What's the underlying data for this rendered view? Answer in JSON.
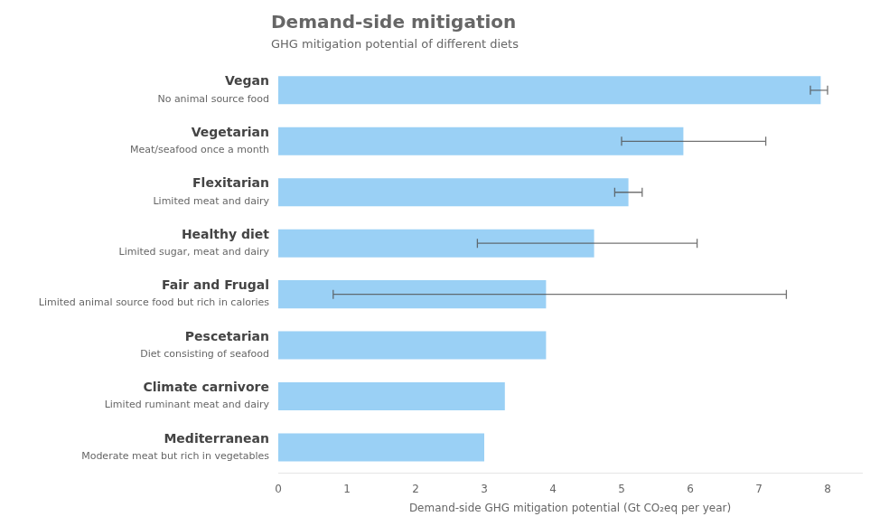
{
  "chart_data": {
    "type": "bar",
    "orientation": "horizontal",
    "title": "Demand-side mitigation",
    "subtitle": "GHG mitigation potential of different diets",
    "xlabel": "Demand-side GHG mitigation potential (Gt CO₂eq per year)",
    "categories": [
      "Vegan",
      "Vegetarian",
      "Flexitarian",
      "Healthy diet",
      "Fair and Frugal",
      "Pescetarian",
      "Climate carnivore",
      "Mediterranean"
    ],
    "subcategories": [
      "No animal source food",
      "Meat/seafood once a month",
      "Limited meat and dairy",
      "Limited sugar, meat and dairy",
      "Limited animal source food but rich in calories",
      "Diet consisting of seafood",
      "Limited ruminant meat and dairy",
      "Moderate meat but rich in vegetables"
    ],
    "values": [
      7.9,
      5.9,
      5.1,
      4.6,
      3.9,
      3.9,
      3.3,
      3.0
    ],
    "xerr_low": [
      0.15,
      0.9,
      0.2,
      1.7,
      3.1,
      0.0,
      0.0,
      0.0
    ],
    "xerr_high": [
      0.1,
      1.2,
      0.2,
      1.5,
      3.5,
      0.0,
      0.0,
      0.0
    ],
    "xlim": [
      0,
      8.5
    ],
    "xticks": [
      0,
      1,
      2,
      3,
      4,
      5,
      6,
      7,
      8
    ],
    "grid": false
  }
}
